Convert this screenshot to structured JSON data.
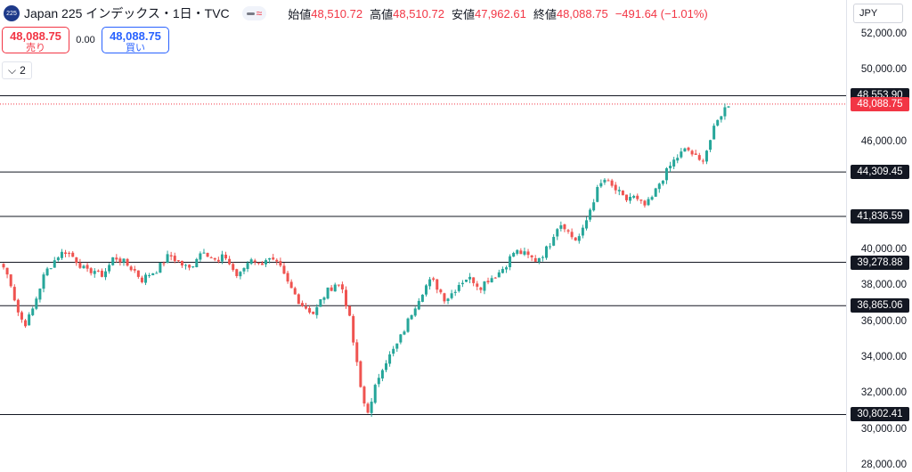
{
  "header": {
    "logo_text": "225",
    "title": "Japan 225 インデックス・1日・TVC",
    "open_label": "始値",
    "open_value": "48,510.72",
    "high_label": "高値",
    "high_value": "48,510.72",
    "low_label": "安値",
    "low_value": "47,962.61",
    "close_label": "終値",
    "close_value": "48,088.75",
    "change": "−491.64 (−1.01%)",
    "wave_icon": "≈"
  },
  "trade": {
    "sell_price": "48,088.75",
    "sell_label": "売り",
    "spread": "0.00",
    "buy_price": "48,088.75",
    "buy_label": "買い"
  },
  "indicators_toggle": {
    "count": "2",
    "icon": "⌵"
  },
  "currency": "JPY",
  "colors": {
    "up": "#26a69a",
    "down": "#ef5350",
    "last": "#f23645",
    "level": "#131722"
  },
  "chart_data": {
    "type": "candlestick",
    "title": "Japan 225 インデックス・1日・TVC",
    "y_ticks": [
      "52,000.00",
      "50,000.00",
      "46,000.00",
      "40,000.00",
      "38,000.00",
      "36,000.00",
      "34,000.00",
      "32,000.00",
      "30,000.00",
      "28,000.00"
    ],
    "y_tick_values": [
      52000,
      50000,
      46000,
      40000,
      38000,
      36000,
      34000,
      32000,
      30000,
      28000
    ],
    "ylim": [
      27800,
      53200
    ],
    "horizontal_levels": [
      {
        "value": 48553.9,
        "label": "48,553.90"
      },
      {
        "value": 44309.45,
        "label": "44,309.45"
      },
      {
        "value": 41836.59,
        "label": "41,836.59"
      },
      {
        "value": 39278.88,
        "label": "39,278.88"
      },
      {
        "value": 36865.06,
        "label": "36,865.06"
      },
      {
        "value": 30802.41,
        "label": "30,802.41"
      }
    ],
    "last_price": {
      "value": 48088.75,
      "label": "48,088.75"
    },
    "close_path": [
      39000,
      38200,
      36600,
      35800,
      36400,
      37600,
      38700,
      39200,
      39700,
      39900,
      39600,
      39200,
      38700,
      38900,
      38500,
      38900,
      39600,
      39400,
      39100,
      38800,
      38300,
      38600,
      38800,
      39200,
      39700,
      39400,
      39100,
      38900,
      39600,
      40000,
      39600,
      39200,
      39700,
      39000,
      38400,
      39100,
      39600,
      39100,
      39500,
      39300,
      39000,
      38200,
      37600,
      37000,
      36700,
      36400,
      37200,
      37700,
      38100,
      37900,
      36400,
      34000,
      31600,
      30900,
      32600,
      33600,
      34100,
      34700,
      35500,
      36400,
      37200,
      37900,
      38300,
      37800,
      37200,
      37600,
      38100,
      38400,
      38300,
      37900,
      38300,
      38500,
      38800,
      39300,
      39900,
      39800,
      39600,
      39400,
      39700,
      40200,
      41200,
      41500,
      40800,
      40500,
      41100,
      42300,
      43300,
      43900,
      43500,
      43200,
      42700,
      43000,
      42600,
      42400,
      42900,
      43700,
      44300,
      44900,
      45300,
      45600,
      45200,
      44800,
      45700,
      46800,
      47600,
      48100
    ]
  }
}
